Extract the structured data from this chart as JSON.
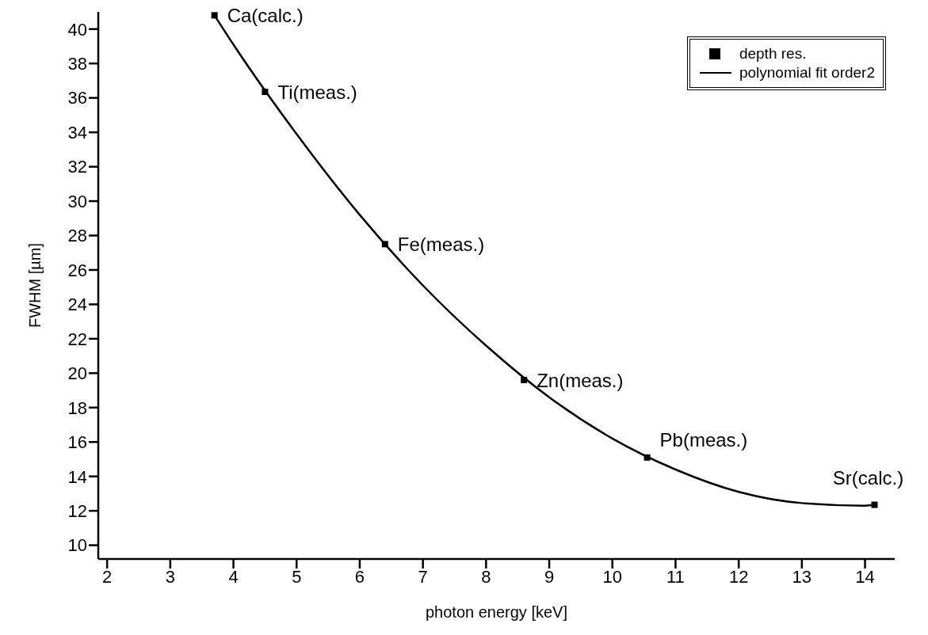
{
  "chart_data": {
    "type": "scatter",
    "xlabel": "photon energy [keV]",
    "ylabel": "FWHM [µm]",
    "xlim": [
      1.86,
      14.47
    ],
    "xticks": [
      2,
      3,
      4,
      5,
      6,
      7,
      8,
      9,
      10,
      11,
      12,
      13,
      14
    ],
    "ylim": [
      9.2,
      41
    ],
    "yticks": [
      10,
      12,
      14,
      16,
      18,
      20,
      22,
      24,
      26,
      28,
      30,
      32,
      34,
      36,
      38,
      40
    ],
    "grid": false,
    "legend": "top right",
    "series": [
      {
        "name": "depth res.",
        "marker": "square",
        "color": "#000000",
        "x": [
          3.7,
          4.5,
          6.4,
          8.6,
          10.55,
          14.15
        ],
        "values": [
          40.8,
          36.35,
          27.5,
          19.6,
          15.1,
          12.35
        ]
      },
      {
        "name": "polynomial fit order2",
        "type": "line",
        "marker": "none",
        "line_style": "solid",
        "color": "#000000",
        "x": [
          3.7,
          4,
          5,
          6,
          7,
          8,
          9,
          10,
          11,
          12,
          13,
          14,
          14.15
        ],
        "values": [
          40.8,
          39.1,
          33.9,
          29.2,
          25.1,
          21.6,
          18.6,
          16.2,
          14.4,
          13.1,
          12.45,
          12.3,
          12.35
        ]
      }
    ],
    "annotations": [
      {
        "text": "Ca(calc.)",
        "x": 3.7,
        "y": 40.8
      },
      {
        "text": "Ti(meas.)",
        "x": 4.5,
        "y": 36.35
      },
      {
        "text": "Fe(meas.)",
        "x": 6.4,
        "y": 27.5
      },
      {
        "text": "Zn(meas.)",
        "x": 8.6,
        "y": 19.6
      },
      {
        "text": "Pb(meas.)",
        "x": 10.55,
        "y": 15.1
      },
      {
        "text": "Sr(calc.)",
        "x": 14.15,
        "y": 12.35
      }
    ]
  }
}
